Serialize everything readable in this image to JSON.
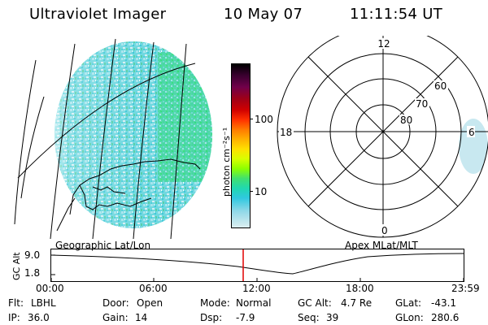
{
  "header": {
    "instrument": "Ultraviolet Imager",
    "date": "10 May 07",
    "time": "11:11:54 UT"
  },
  "geo_panel": {
    "label": "Geographic Lat/Lon"
  },
  "colorbar": {
    "unit_label": "photon cm⁻²s⁻¹",
    "ticks": [
      "100",
      "10"
    ],
    "colors": [
      "#000000",
      "#3a0030",
      "#70004a",
      "#9e0018",
      "#d00000",
      "#ff3000",
      "#ff7a00",
      "#ffb000",
      "#ffe000",
      "#d8ff00",
      "#8cff00",
      "#40e070",
      "#20d8b0",
      "#30c8e0",
      "#90d8e8",
      "#dceef0"
    ]
  },
  "polar_panel": {
    "label": "Apex MLat/MLT",
    "mlt_labels": [
      "12",
      "18",
      "6",
      "0"
    ],
    "mlat_labels": [
      "60",
      "70",
      "80"
    ]
  },
  "timeline": {
    "y_label": "GC Alt",
    "y_ticks": [
      "9.0",
      "1.8"
    ],
    "x_ticks": [
      "00:00",
      "06:00",
      "12:00",
      "18:00",
      "23:59"
    ],
    "marker_time": "11:11"
  },
  "status": {
    "row1": [
      {
        "key": "Flt:",
        "value": "LBHL"
      },
      {
        "key": "Door:",
        "value": "Open"
      },
      {
        "key": "Mode:",
        "value": "Normal"
      },
      {
        "key": "GC Alt:",
        "value": "4.7 Re"
      },
      {
        "key": "GLat:",
        "value": "-43.1"
      }
    ],
    "row2": [
      {
        "key": "IP:",
        "value": "36.0"
      },
      {
        "key": "Gain:",
        "value": "14"
      },
      {
        "key": "Dsp:",
        "value": "-7.9"
      },
      {
        "key": "Seq:",
        "value": "39"
      },
      {
        "key": "GLon:",
        "value": "280.6"
      }
    ]
  }
}
